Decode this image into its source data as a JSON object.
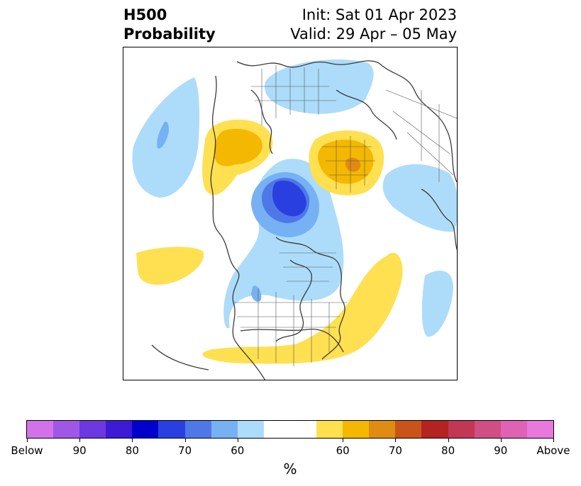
{
  "title": {
    "line1": "H500",
    "line2": "Probability"
  },
  "subtitle": {
    "init": "Init: Sat 01 Apr 2023",
    "valid": "Valid: 29 Apr – 05 May"
  },
  "colorbar": {
    "unit": "%",
    "colors": [
      "#d272ea",
      "#a057e6",
      "#6c39e0",
      "#3d1ad6",
      "#0000cd",
      "#2a3fe0",
      "#4e78e8",
      "#76b1f3",
      "#acdcfa",
      "#ffffff",
      "#ffffff",
      "#ffe050",
      "#f4b800",
      "#e08b12",
      "#c8541a",
      "#b42222",
      "#c03855",
      "#cf4f84",
      "#df62b4",
      "#e878dc"
    ],
    "ticks": [
      "Below",
      "90",
      "80",
      "70",
      "60",
      "60",
      "70",
      "80",
      "90",
      "Above"
    ]
  },
  "legend_colors": {
    "below_60": "#acdcfa",
    "below_70": "#76b1f3",
    "below_80": "#4e78e8",
    "below_90": "#2a3fe0",
    "above_60": "#ffe050",
    "above_70": "#f4b800",
    "above_80": "#e08b12"
  }
}
